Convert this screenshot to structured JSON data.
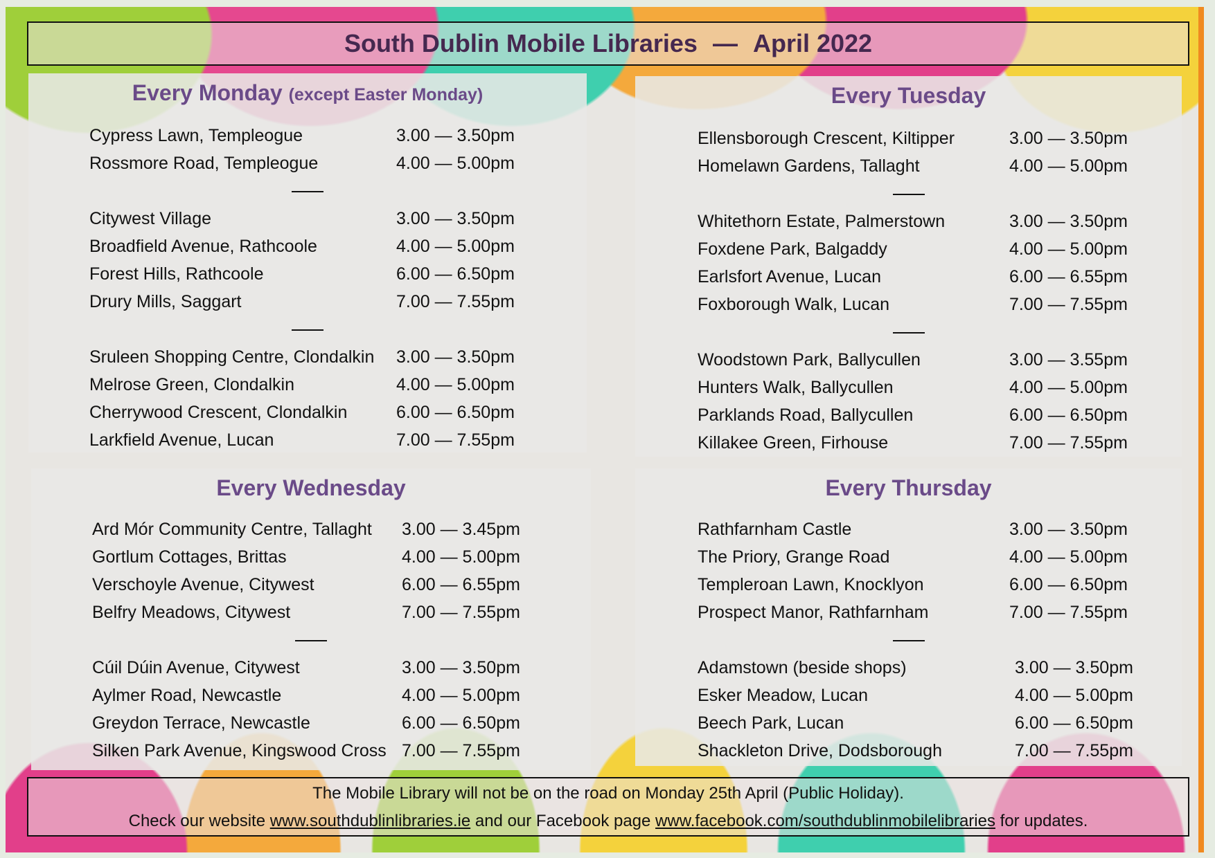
{
  "title": {
    "name": "South Dublin Mobile Libraries",
    "separator": "—",
    "month": "April 2022"
  },
  "colors": {
    "title": "#45284f",
    "heading": "#6a4a88",
    "accent_border": "#f08a20"
  },
  "panels": [
    {
      "id": "monday",
      "heading": "Every Monday",
      "note": "(except Easter Monday)",
      "groups": [
        [
          [
            "Cypress Lawn, Templeogue",
            "3.00 — 3.50pm"
          ],
          [
            "Rossmore Road, Templeogue",
            "4.00 — 5.00pm"
          ]
        ],
        [
          [
            "Citywest Village",
            "3.00 — 3.50pm"
          ],
          [
            "Broadfield Avenue, Rathcoole",
            "4.00 — 5.00pm"
          ],
          [
            "Forest Hills, Rathcoole",
            "6.00 — 6.50pm"
          ],
          [
            "Drury Mills, Saggart",
            "7.00 — 7.55pm"
          ]
        ],
        [
          [
            "Sruleen Shopping Centre, Clondalkin",
            "3.00 — 3.50pm"
          ],
          [
            "Melrose Green, Clondalkin",
            "4.00 — 5.00pm"
          ],
          [
            "Cherrywood Crescent, Clondalkin",
            "6.00 — 6.50pm"
          ],
          [
            "Larkfield Avenue, Lucan",
            "7.00 — 7.55pm"
          ]
        ]
      ]
    },
    {
      "id": "tuesday",
      "heading": "Every Tuesday",
      "groups": [
        [
          [
            "Ellensborough Crescent, Kiltipper",
            "3.00 — 3.50pm"
          ],
          [
            "Homelawn Gardens, Tallaght",
            "4.00 — 5.00pm"
          ]
        ],
        [
          [
            "Whitethorn Estate, Palmerstown",
            "3.00 — 3.50pm"
          ],
          [
            "Foxdene Park, Balgaddy",
            "4.00 — 5.00pm"
          ],
          [
            "Earlsfort Avenue, Lucan",
            "6.00 — 6.55pm"
          ],
          [
            "Foxborough Walk, Lucan",
            "7.00 — 7.55pm"
          ]
        ],
        [
          [
            "Woodstown Park, Ballycullen",
            "3.00 — 3.55pm"
          ],
          [
            "Hunters Walk, Ballycullen",
            "4.00 — 5.00pm"
          ],
          [
            "Parklands Road, Ballycullen",
            "6.00 — 6.50pm"
          ],
          [
            "Killakee Green, Firhouse",
            "7.00 — 7.55pm"
          ]
        ]
      ]
    },
    {
      "id": "wednesday",
      "heading": "Every Wednesday",
      "groups": [
        [
          [
            "Ard Mór Community Centre, Tallaght",
            "3.00 — 3.45pm"
          ],
          [
            "Gortlum Cottages, Brittas",
            "4.00 — 5.00pm"
          ],
          [
            "Verschoyle Avenue, Citywest",
            "6.00 — 6.55pm"
          ],
          [
            "Belfry Meadows, Citywest",
            "7.00 — 7.55pm"
          ]
        ],
        [
          [
            "Cúil Dúin Avenue, Citywest",
            "3.00 — 3.50pm"
          ],
          [
            "Aylmer Road, Newcastle",
            "4.00 — 5.00pm"
          ],
          [
            "Greydon Terrace, Newcastle",
            "6.00 — 6.50pm"
          ],
          [
            "Silken Park Avenue, Kingswood Cross",
            "7.00 — 7.55pm"
          ]
        ]
      ]
    },
    {
      "id": "thursday",
      "heading": "Every Thursday",
      "groups": [
        [
          [
            "Rathfarnham Castle",
            "3.00 — 3.50pm"
          ],
          [
            "The Priory, Grange Road",
            "4.00 — 5.00pm"
          ],
          [
            "Templeroan Lawn, Knocklyon",
            "6.00 — 6.50pm"
          ],
          [
            "Prospect Manor, Rathfarnham",
            "7.00 — 7.55pm"
          ]
        ],
        [
          [
            "Adamstown (beside shops)",
            "3.00 — 3.50pm"
          ],
          [
            "Esker Meadow, Lucan",
            "4.00 — 5.00pm"
          ],
          [
            "Beech Park, Lucan",
            "6.00 — 6.50pm"
          ],
          [
            "Shackleton Drive, Dodsborough",
            "7.00 — 7.55pm"
          ]
        ]
      ]
    }
  ],
  "footer": {
    "line1": "The Mobile Library will not be on the road on Monday 25th April (Public Holiday).",
    "line2_pre": "Check our website ",
    "website": "www.southdublinlibraries.ie",
    "line2_mid": " and our Facebook page ",
    "facebook": "www.facebook.com/southdublinmobilelibraries",
    "line2_post": " for updates."
  }
}
